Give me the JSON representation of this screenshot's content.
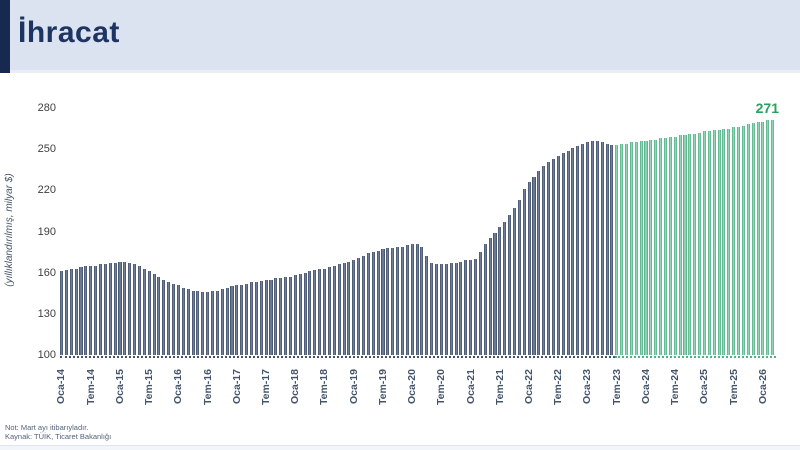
{
  "header": {
    "title": "İhracat"
  },
  "chart_data": {
    "type": "bar",
    "title": "İhracat",
    "ylabel": "(yıllıklandırılmış, milyar $)",
    "xlabel": "",
    "ylim": [
      100,
      280
    ],
    "yticks": [
      100,
      130,
      160,
      190,
      220,
      250,
      280
    ],
    "grid": false,
    "legend": "none",
    "x_labels": [
      "Oca-14",
      "Tem-14",
      "Oca-15",
      "Tem-15",
      "Oca-16",
      "Tem-16",
      "Oca-17",
      "Tem-17",
      "Oca-18",
      "Tem-18",
      "Oca-19",
      "Tem-19",
      "Oca-20",
      "Tem-20",
      "Oca-21",
      "Tem-21",
      "Oca-22",
      "Tem-22",
      "Oca-23",
      "Tem-23",
      "Oca-24",
      "Tem-24",
      "Oca-25",
      "Tem-25",
      "Oca-26"
    ],
    "label_interval_months": 6,
    "segments": [
      {
        "name": "actual",
        "color": "#44546A",
        "edge": "#3A4963",
        "mid": "#7C89A0",
        "values": [
          161,
          162,
          163,
          163,
          164,
          165,
          165,
          165,
          166,
          166,
          167,
          167,
          168,
          168,
          167,
          166,
          165,
          163,
          161,
          159,
          157,
          155,
          153,
          152,
          151,
          149,
          148,
          147,
          147,
          146,
          146,
          147,
          147,
          148,
          149,
          150,
          151,
          151,
          152,
          153,
          153,
          154,
          155,
          155,
          156,
          156,
          157,
          157,
          158,
          159,
          160,
          161,
          162,
          163,
          163,
          164,
          165,
          166,
          167,
          168,
          169,
          171,
          172,
          174,
          175,
          176,
          177,
          178,
          178,
          179,
          179,
          180,
          181,
          181,
          179,
          172,
          167,
          166,
          166,
          166,
          167,
          167,
          168,
          169,
          169,
          170,
          175,
          181,
          185,
          189,
          193,
          197,
          202,
          207,
          213,
          221,
          226,
          230,
          234,
          238,
          241,
          243,
          245,
          247,
          249,
          251,
          252,
          254,
          255,
          256,
          256,
          255,
          254,
          253
        ]
      },
      {
        "name": "projection",
        "color": "#52B283",
        "edge": "#45AB7C",
        "mid": "#A6DCC3",
        "values": [
          253,
          254,
          254,
          255,
          255,
          256,
          256,
          257,
          257,
          258,
          258,
          259,
          259,
          260,
          260,
          261,
          261,
          262,
          263,
          263,
          264,
          264,
          265,
          265,
          266,
          266,
          267,
          268,
          269,
          270,
          270,
          271,
          271
        ]
      }
    ],
    "end_label": {
      "text": "271",
      "color": "#2AA05D"
    }
  },
  "footer": {
    "note": "Not: Mart ayı itibarıyladır.",
    "source": "Kaynak: TÜİK, Ticaret Bakanlığı"
  }
}
